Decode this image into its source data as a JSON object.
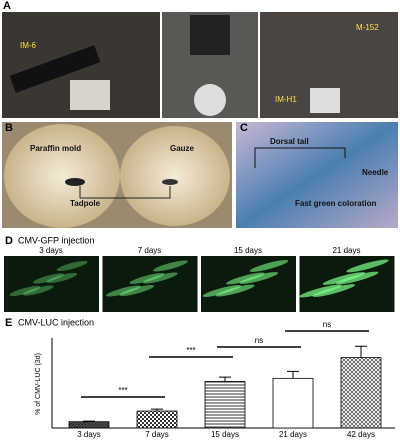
{
  "panels": {
    "a": {
      "letter": "A",
      "labels": [
        "IM-6",
        "M-152",
        "IM-H1"
      ]
    },
    "b": {
      "letter": "B",
      "labels": [
        "Paraffin mold",
        "Gauze",
        "Tadpole"
      ]
    },
    "c": {
      "letter": "C",
      "labels": [
        "Dorsal tail",
        "Needle",
        "Fast green coloration"
      ]
    },
    "d": {
      "letter": "D",
      "title": "CMV-GFP injection",
      "days": [
        "3 days",
        "7 days",
        "15 days",
        "21 days"
      ]
    }
  },
  "chart_data": {
    "type": "bar",
    "letter": "E",
    "title": "CMV-LUC injection",
    "ylabel": "% of CMV-LUC (3d)",
    "categories": [
      "3 days",
      "7 days",
      "15 days",
      "21 days",
      "42 days"
    ],
    "values": [
      100,
      270,
      740,
      790,
      1120
    ],
    "errors": [
      10,
      30,
      70,
      110,
      180
    ],
    "ylim": [
      0,
      1400
    ],
    "significance": [
      "***",
      "***",
      "ns",
      "ns"
    ]
  }
}
